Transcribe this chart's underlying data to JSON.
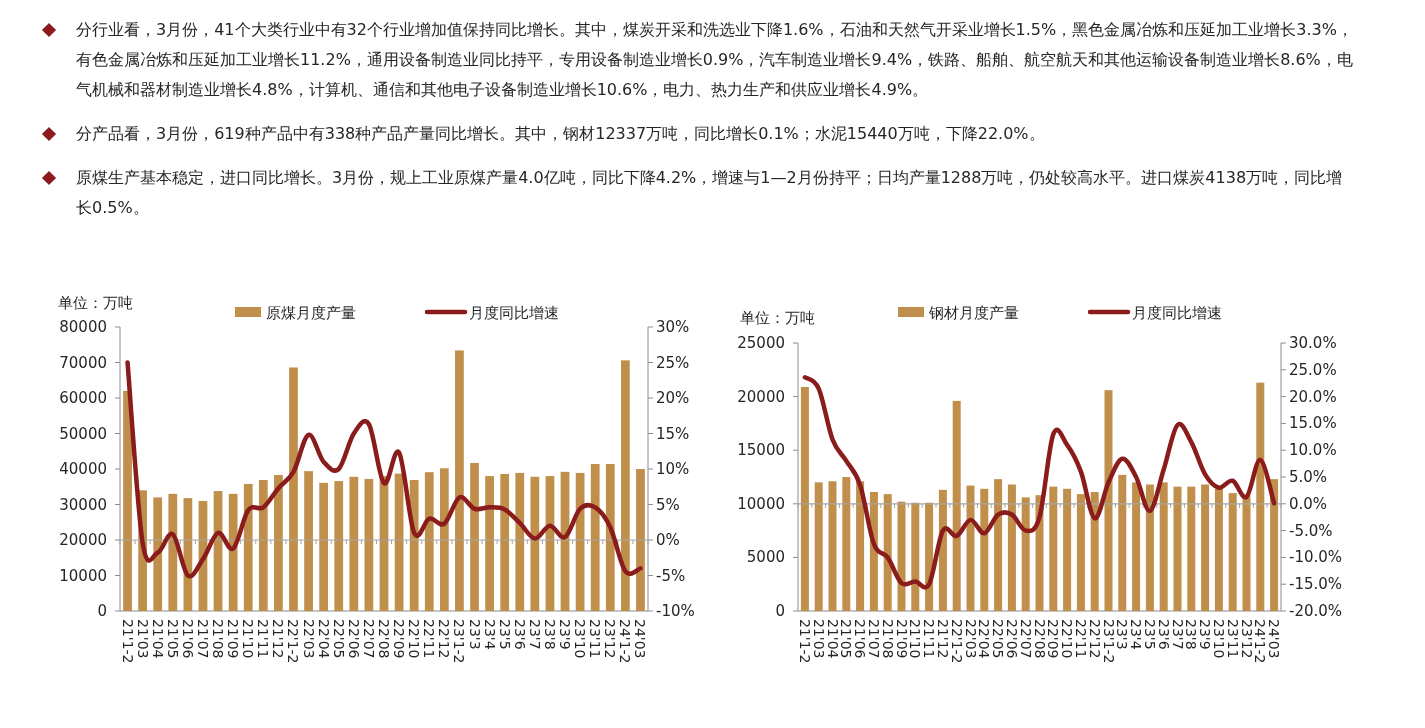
{
  "chart_data": [
    {
      "type": "other",
      "annotations": [
        "分行业看，3月份，41个大类行业中有32个行业增加值保持同比增长。其中，煤炭开采和洗选业下降1.6%，石油和天然气开采业增长1.5%，黑色金属冶炼和压延加工业增长3.3%，有色金属冶炼和压延加工业增长11.2%，通用设备制造业同比持平，专用设备制造业增长0.9%，汽车制造业增长9.4%，铁路、船舶、航空航天和其他运输设备制造业增长8.6%，电气机械和器材制造业增长4.8%，计算机、通信和其他电子设备制造业增长10.6%，电力、热力生产和供应业增长4.9%。",
        "分产品看，3月份，619种产品中有338种产品产量同比增长。其中，钢材12337万吨，同比增长0.1%；水泥15440万吨，下降22.0%。",
        "原煤生产基本稳定，进口同比增长。3月份，规上工业原煤产量4.0亿吨，同比下降4.2%，增速与1—2月份持平；日均产量1288万吨，仍处较高水平。进口煤炭4138万吨，同比增长0.5%。"
      ]
    },
    {
      "type": "bar",
      "ylabel": "单位：万吨",
      "legend": "top",
      "categories": [
        "21'1-2",
        "21'03",
        "21'04",
        "21'05",
        "21'06",
        "21'07",
        "21'08",
        "21'09",
        "21'10",
        "21'11",
        "21'12",
        "22'1-2",
        "22'03",
        "22'04",
        "22'05",
        "22'06",
        "22'07",
        "22'08",
        "22'09",
        "22'10",
        "22'11",
        "22'12",
        "23'1-2",
        "23'3",
        "23'4",
        "23'5",
        "23'6",
        "23'7",
        "23'8",
        "23'9",
        "23'10",
        "23'11",
        "23'12",
        "24'1-2",
        "24'03"
      ],
      "series": [
        {
          "name": "原煤月度产量",
          "color": "#c08f4b",
          "values": [
            62000,
            34000,
            32000,
            33000,
            31800,
            31000,
            33800,
            33000,
            35800,
            36900,
            38300,
            68600,
            39400,
            36100,
            36600,
            37800,
            37200,
            38000,
            38700,
            36900,
            39100,
            40200,
            73400,
            41700,
            38000,
            38600,
            38900,
            37800,
            38000,
            39200,
            38900,
            41400,
            41400,
            70600,
            40000
          ]
        },
        {
          "name": "月度同比增速",
          "type": "line",
          "axis": "y2",
          "color": "#8b1c1c",
          "values": [
            25,
            -0.4,
            -1.8,
            0.8,
            -5,
            -2.7,
            1,
            -1.2,
            4.2,
            4.6,
            7.3,
            9.6,
            14.8,
            11,
            10,
            15,
            16.3,
            8,
            12.3,
            1,
            3,
            2.3,
            6,
            4.4,
            4.6,
            4.3,
            2.4,
            0.2,
            2,
            0.4,
            4.4,
            4.6,
            1.8,
            -4.4,
            -4
          ]
        }
      ],
      "ylim": [
        0,
        80000
      ],
      "yticks": [
        0,
        10000,
        20000,
        30000,
        40000,
        50000,
        60000,
        70000,
        80000
      ],
      "y2lim": [
        -10,
        30
      ],
      "y2ticks": [
        {
          "value": -10,
          "label": "-10%"
        },
        {
          "value": -5,
          "label": "-5%"
        },
        {
          "value": 0,
          "label": "0%"
        },
        {
          "value": 5,
          "label": "5%"
        },
        {
          "value": 10,
          "label": "10%"
        },
        {
          "value": 15,
          "label": "15%"
        },
        {
          "value": 20,
          "label": "20%"
        },
        {
          "value": 25,
          "label": "25%"
        },
        {
          "value": 30,
          "label": "30%"
        }
      ],
      "ref_lines": [
        {
          "axis": "y2",
          "value": 0,
          "color": "#a6a6a6"
        }
      ]
    },
    {
      "type": "bar",
      "ylabel": "单位：万吨",
      "legend": "top",
      "categories": [
        "21'1-2",
        "21'03",
        "21'04",
        "21'05",
        "21'06",
        "21'07",
        "21'08",
        "21'09",
        "21'10",
        "21'11",
        "21'12",
        "22'1-2",
        "22'03",
        "22'04",
        "22'05",
        "22'06",
        "22'07",
        "22'08",
        "22'09",
        "22'10",
        "22'11",
        "22'12",
        "23'1-2",
        "23'3",
        "23'4",
        "23'5",
        "23'6",
        "23'7",
        "23'8",
        "23'9",
        "23'10",
        "23'11",
        "23'12",
        "24'1-2",
        "24'03"
      ],
      "series": [
        {
          "name": "钢材月度产量",
          "color": "#c08f4b",
          "values": [
            20900,
            12000,
            12100,
            12500,
            12100,
            11100,
            10900,
            10200,
            10100,
            10100,
            11300,
            19600,
            11700,
            11400,
            12300,
            11800,
            10600,
            10800,
            11600,
            11400,
            10900,
            11100,
            20600,
            12700,
            12000,
            11800,
            12000,
            11600,
            11600,
            11800,
            11400,
            11000,
            10800,
            21300,
            12300
          ]
        },
        {
          "name": "月度同比增速",
          "type": "line",
          "axis": "y2",
          "color": "#8b1c1c",
          "values": [
            23.6,
            21.5,
            12,
            8,
            3.5,
            -7.5,
            -10,
            -14.8,
            -14.5,
            -15,
            -5,
            -6,
            -3,
            -5.5,
            -2,
            -2,
            -5,
            -2.5,
            13,
            11,
            6,
            -2.7,
            4,
            8.4,
            5,
            -1.3,
            6.4,
            14.7,
            11.5,
            5.5,
            3,
            4.3,
            1.3,
            8.2,
            0.1
          ]
        }
      ],
      "ylim": [
        0,
        25000
      ],
      "yticks": [
        0,
        5000,
        10000,
        15000,
        20000,
        25000
      ],
      "y2lim": [
        -20,
        30
      ],
      "y2ticks": [
        {
          "value": -20,
          "label": "-20.0%"
        },
        {
          "value": -15,
          "label": "-15.0%"
        },
        {
          "value": -10,
          "label": "-10.0%"
        },
        {
          "value": -5,
          "label": "-5.0%"
        },
        {
          "value": 0,
          "label": "0.0%"
        },
        {
          "value": 5,
          "label": "5.0%"
        },
        {
          "value": 10,
          "label": "10.0%"
        },
        {
          "value": 15,
          "label": "15.0%"
        },
        {
          "value": 20,
          "label": "20.0%"
        },
        {
          "value": 25,
          "label": "25.0%"
        },
        {
          "value": 30,
          "label": "30.0%"
        }
      ],
      "ref_lines": [
        {
          "axis": "y2",
          "value": 0,
          "color": "#a6a6a6"
        }
      ]
    }
  ]
}
